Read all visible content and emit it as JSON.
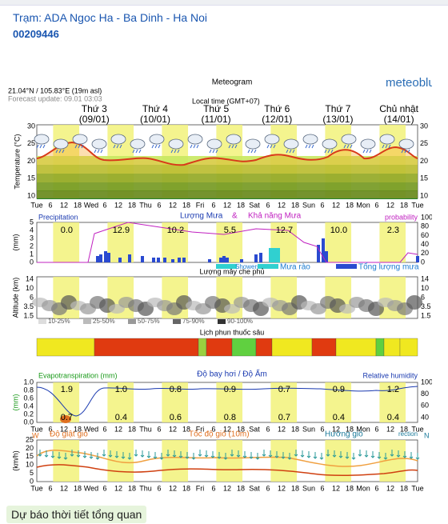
{
  "header": {
    "station": "Trạm: ADA Ngoc Ha - Ba Dinh - Ha Noi",
    "id": "00209446"
  },
  "meteogram": {
    "title": "Meteogram",
    "brand": "meteoblue",
    "location": "21.04°N / 105.83°E (19m asl)",
    "forecast_update": "Forecast update: 09.01 03:03",
    "local_time": "Local time (GMT+07)",
    "days": [
      {
        "name": "Thứ 3",
        "date": "(09/01)"
      },
      {
        "name": "Thứ 4",
        "date": "(10/01)"
      },
      {
        "name": "Thứ 5",
        "date": "(11/01)"
      },
      {
        "name": "Thứ 6",
        "date": "(12/01)"
      },
      {
        "name": "Thứ 7",
        "date": "(13/01)"
      },
      {
        "name": "Chủ nhật",
        "date": "(14/01)"
      }
    ],
    "time_axis": [
      "Tue",
      "6",
      "12",
      "18",
      "Wed",
      "6",
      "12",
      "18",
      "Thu",
      "6",
      "12",
      "18",
      "Fri",
      "6",
      "12",
      "18",
      "Sat",
      "6",
      "12",
      "18",
      "Sun",
      "6",
      "12",
      "18",
      "Mon",
      "6",
      "12",
      "18",
      "Tue"
    ],
    "temperature": {
      "axis_label": "Temperature (°C)",
      "ticks": [
        "30",
        "25",
        "20",
        "15",
        "10"
      ]
    },
    "precipitation": {
      "title_left": "Lượng Mưa",
      "amp": "&",
      "title_right": "Khả năng Mưa",
      "left_label": "Precipitation",
      "right_label": "probability",
      "left_unit": "(mm)",
      "right_unit": "(%)",
      "left_ticks": [
        "5",
        "4",
        "3",
        "2",
        "1",
        "0"
      ],
      "right_ticks": [
        "100",
        "80",
        "60",
        "40",
        "20",
        "0"
      ],
      "daily_totals": [
        "0.0",
        "12.9",
        "10.2",
        "5.5",
        "12.7",
        "10.0",
        "2.3"
      ],
      "legend": [
        "Showers",
        "Mưa rào",
        "Tổng lượng mưa"
      ]
    },
    "clouds": {
      "title": "Lượng mây che phủ",
      "axis_label": "Altitude (km)",
      "ticks": [
        "14",
        "10",
        "6",
        "3.5",
        "1.5"
      ],
      "legend": [
        "10-25%",
        "25-50%",
        "50-75%",
        "75-90%",
        "90-100%"
      ]
    },
    "spraying": {
      "title": "Lịch phun thuốc sâu"
    },
    "evaporation": {
      "left_label": "Evapotranspiration (mm)",
      "title": "Độ bay hơi / Độ Ẩm",
      "right_label": "Relative humidity",
      "left_unit": "(mm)",
      "right_unit": "(%)",
      "left_ticks": [
        "1.0",
        "0.8",
        "0.6",
        "0.4",
        "0.2",
        "0.0"
      ],
      "right_ticks": [
        "100",
        "80",
        "60",
        "40"
      ],
      "top_values": [
        "1.9",
        "1.0",
        "0.8",
        "0.9",
        "0.7",
        "0.9",
        "1.2"
      ],
      "bottom_values": [
        "0.7",
        "0.4",
        "0.6",
        "0.8",
        "0.7",
        "0.4",
        "0.4"
      ]
    },
    "wind": {
      "gust_label": "Độ giật gió",
      "speed_label": "Tốc độ gió (10m)",
      "direction_label": "Hướng gió",
      "direction_en": "rection",
      "unit": "(km/h)",
      "ticks": [
        "25",
        "20",
        "15",
        "10",
        "5",
        "0"
      ],
      "west": "W",
      "north": "N"
    }
  },
  "button": "Dự báo thời tiết tổng quan"
}
